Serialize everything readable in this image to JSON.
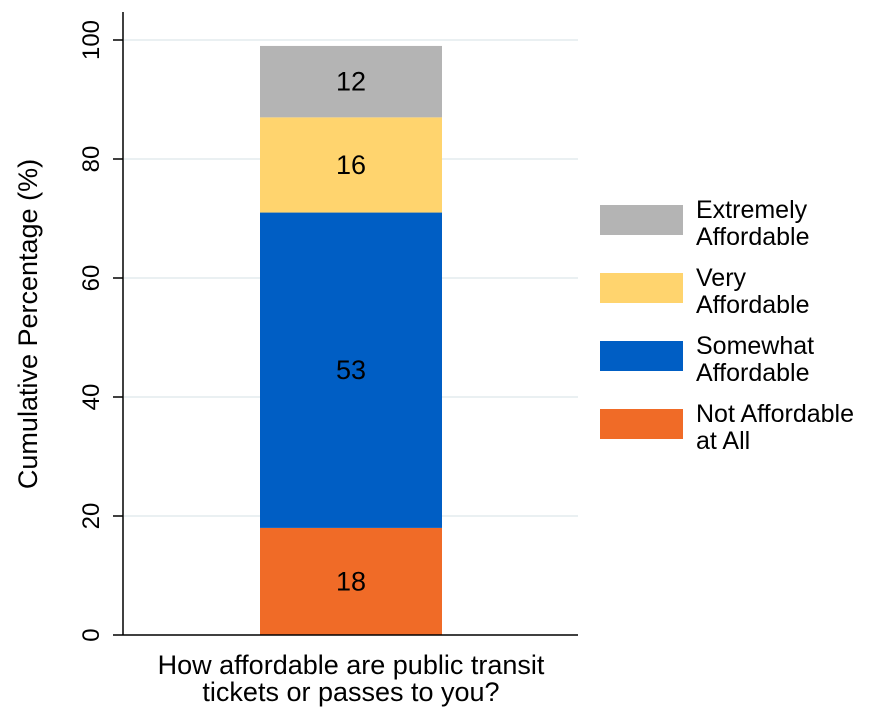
{
  "chart_data": {
    "type": "bar",
    "stacked": true,
    "title": "",
    "xlabel_lines": [
      "How affordable are public transit",
      "tickets or passes to you?"
    ],
    "ylabel": "Cumulative Percentage (%)",
    "ylim": [
      0,
      100
    ],
    "yticks": [
      0,
      20,
      40,
      60,
      80,
      100
    ],
    "ytick_labels": [
      "0",
      "20",
      "40",
      "60",
      "80",
      "100"
    ],
    "grid": true,
    "legend_position": "right",
    "series": [
      {
        "name_lines": [
          "Not Affordable",
          "at All"
        ],
        "value": 18,
        "label": "18",
        "color": "#f06b27"
      },
      {
        "name_lines": [
          "Somewhat",
          "Affordable"
        ],
        "value": 53,
        "label": "53",
        "color": "#005ec4"
      },
      {
        "name_lines": [
          "Very",
          "Affordable"
        ],
        "value": 16,
        "label": "16",
        "color": "#ffd46e"
      },
      {
        "name_lines": [
          "Extremely",
          "Affordable"
        ],
        "value": 12,
        "label": "12",
        "color": "#b4b4b4"
      }
    ],
    "grid_color": "#e3ecee",
    "axis_color": "#000000"
  }
}
